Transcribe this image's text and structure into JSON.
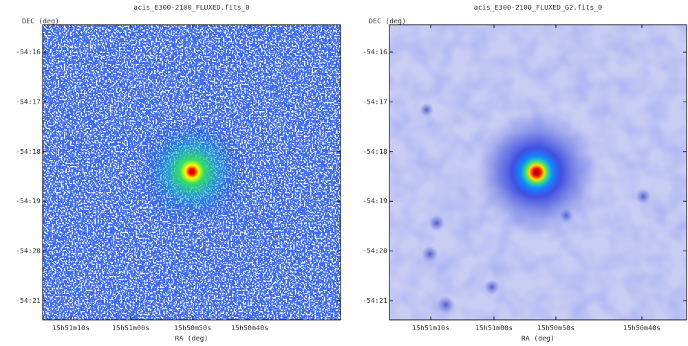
{
  "panels": [
    {
      "title": "acis_E300-2100_FLUXED.fits_0",
      "y_label": "DEC (deg)",
      "x_label": "RA (deg)",
      "y_ticks": [
        "-54:16",
        "-54:17",
        "-54:18",
        "-54:19",
        "-54:20",
        "-54:21"
      ],
      "x_ticks": [
        "15h51m10s",
        "15h51m00s",
        "15h50m50s",
        "15h50m40s"
      ]
    },
    {
      "title": "acis_E300-2100_FLUXED_G2.fits_0",
      "y_label": "DEC (deg)",
      "x_label": "RA (deg)",
      "y_ticks": [
        "-54:16",
        "-54:17",
        "-54:18",
        "-54:19",
        "-54:20",
        "-54:21"
      ],
      "x_ticks": [
        "15h51m10s",
        "15h51m00s",
        "15h50m50s",
        "15h50m40s"
      ]
    }
  ]
}
